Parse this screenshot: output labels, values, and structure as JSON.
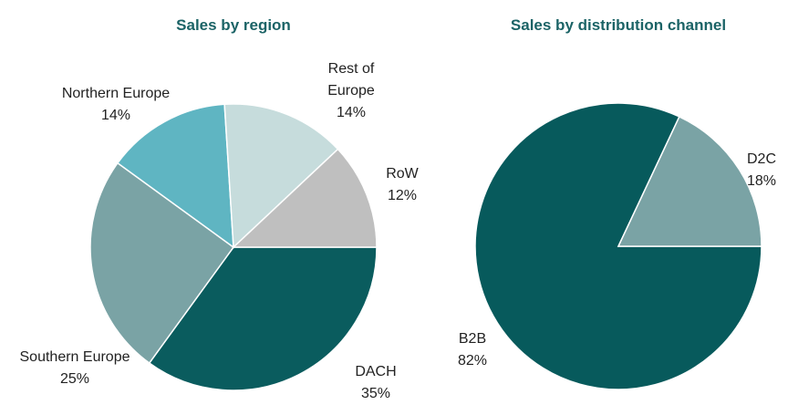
{
  "chart_data": [
    {
      "type": "pie",
      "title": "Sales by region",
      "categories": [
        "DACH",
        "Southern Europe",
        "Northern Europe",
        "Rest of Europe",
        "RoW"
      ],
      "values": [
        35,
        25,
        14,
        14,
        12
      ],
      "value_labels": [
        "35%",
        "25%",
        "14%",
        "14%",
        "12%"
      ],
      "colors": [
        "#0a5c5e",
        "#7aa3a5",
        "#5fb5c2",
        "#c6dcdc",
        "#bfbfbf"
      ]
    },
    {
      "type": "pie",
      "title": "Sales by distribution channel",
      "categories": [
        "B2B",
        "D2C"
      ],
      "values": [
        82,
        18
      ],
      "value_labels": [
        "82%",
        "18%"
      ],
      "colors": [
        "#075a5c",
        "#7aa3a5"
      ]
    }
  ]
}
